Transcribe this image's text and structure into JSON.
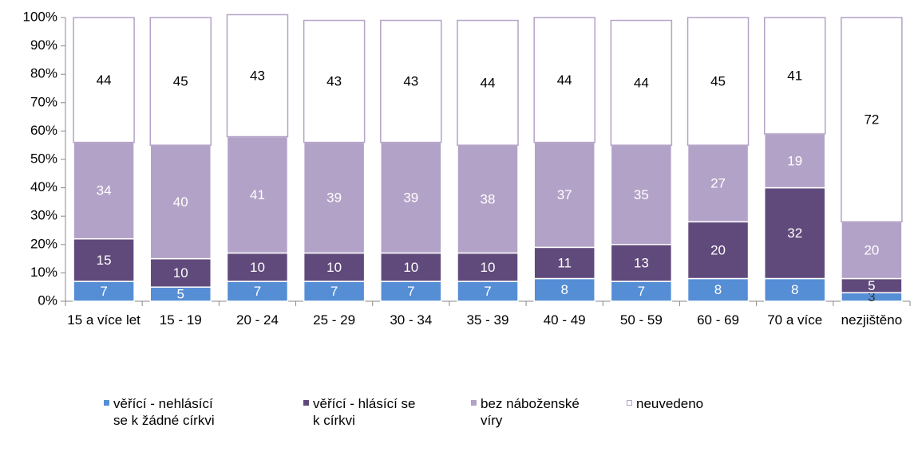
{
  "chart_data": {
    "type": "stacked_bar_100",
    "categories": [
      "15 a více let",
      "15 - 19",
      "20 - 24",
      "25 - 29",
      "30 - 34",
      "35 - 39",
      "40 - 49",
      "50 - 59",
      "60 - 69",
      "70 a více",
      "nezjištěno"
    ],
    "series": [
      {
        "name": "věřící - nehlásící se k žádné církvi",
        "color": "#558ed5",
        "values": [
          7,
          5,
          7,
          7,
          7,
          7,
          8,
          7,
          8,
          8,
          3
        ]
      },
      {
        "name": "věřící - hlásící se k církvi",
        "color": "#604a7b",
        "values": [
          15,
          10,
          10,
          10,
          10,
          10,
          11,
          13,
          20,
          32,
          5
        ]
      },
      {
        "name": "bez náboženské víry",
        "color": "#b3a2c7",
        "values": [
          34,
          40,
          41,
          39,
          39,
          38,
          37,
          35,
          27,
          19,
          20
        ]
      },
      {
        "name": "neuvedeno",
        "color": "#ffffff",
        "values": [
          44,
          45,
          43,
          43,
          43,
          44,
          44,
          44,
          45,
          41,
          72
        ]
      }
    ],
    "ylim": [
      0,
      100
    ],
    "yticks": [
      {
        "value": 0,
        "label": "0%"
      },
      {
        "value": 10,
        "label": "10%"
      },
      {
        "value": 20,
        "label": "20%"
      },
      {
        "value": 30,
        "label": "30%"
      },
      {
        "value": 40,
        "label": "40%"
      },
      {
        "value": 50,
        "label": "50%"
      },
      {
        "value": 60,
        "label": "60%"
      },
      {
        "value": 70,
        "label": "70%"
      },
      {
        "value": 80,
        "label": "80%"
      },
      {
        "value": 90,
        "label": "90%"
      },
      {
        "value": 100,
        "label": "100%"
      }
    ],
    "legend": "bottom"
  }
}
